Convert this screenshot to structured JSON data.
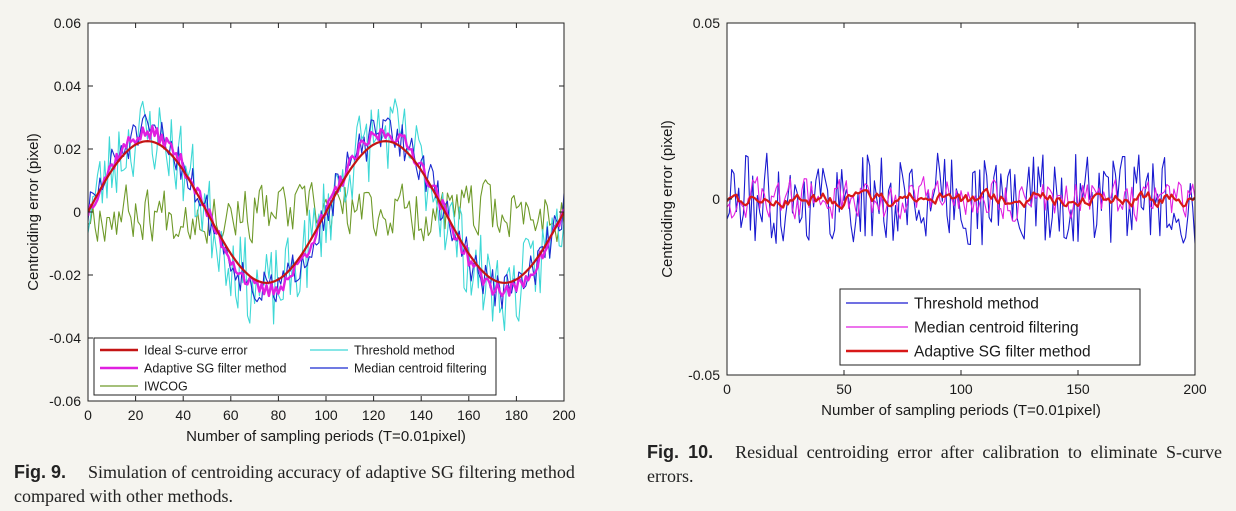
{
  "chart_data": [
    {
      "type": "line",
      "title": "",
      "xlabel": "Number of sampling periods (T=0.01pixel)",
      "ylabel": "Centroiding error (pixel)",
      "xlim": [
        0,
        200
      ],
      "ylim": [
        -0.06,
        0.06
      ],
      "xticks": [
        "0",
        "20",
        "40",
        "60",
        "80",
        "100",
        "120",
        "140",
        "160",
        "180",
        "200"
      ],
      "yticks": [
        "-0.06",
        "-0.04",
        "-0.02",
        "0",
        "0.02",
        "0.04",
        "0.06"
      ],
      "legend_position": "bottom-left",
      "series": [
        {
          "name": "Ideal S-curve error",
          "color": "#c41414",
          "kind": "sine",
          "amplitude": 0.0225,
          "noise": 0
        },
        {
          "name": "Threshold method",
          "color": "#3ed8d6",
          "kind": "sine",
          "amplitude": 0.025,
          "noise": 0.013
        },
        {
          "name": "Adaptive SG filter method",
          "color": "#e020e0",
          "kind": "sine",
          "amplitude": 0.025,
          "noise": 0.0025
        },
        {
          "name": "Median centroid filtering",
          "color": "#1a2ad0",
          "kind": "sine",
          "amplitude": 0.025,
          "noise": 0.006
        },
        {
          "name": "IWCOG",
          "color": "#6f9a2a",
          "kind": "noise",
          "amplitude": 0.0,
          "noise": 0.009
        }
      ],
      "caption_label": "Fig. 9.",
      "caption_text": "Simulation of centroiding accuracy of adaptive SG filtering method compared with other methods."
    },
    {
      "type": "line",
      "title": "",
      "xlabel": "Number of sampling periods (T=0.01pixel)",
      "ylabel": "Centroiding error (pixel)",
      "xlim": [
        0,
        200
      ],
      "ylim": [
        -0.05,
        0.05
      ],
      "xticks": [
        "0",
        "50",
        "100",
        "150",
        "200"
      ],
      "yticks": [
        "-0.05",
        "0",
        "0.05"
      ],
      "legend_position": "bottom-right",
      "series": [
        {
          "name": "Threshold method",
          "color": "#1a1ad0",
          "kind": "noise",
          "amplitude": 0.0,
          "noise": 0.013
        },
        {
          "name": "Median centroid filtering",
          "color": "#e020e0",
          "kind": "noise",
          "amplitude": 0.0,
          "noise": 0.006
        },
        {
          "name": "Adaptive SG filter method",
          "color": "#d81818",
          "kind": "noise",
          "amplitude": 0.0,
          "noise": 0.0025
        }
      ],
      "caption_label": "Fig. 10.",
      "caption_text": "Residual centroiding error after calibration to eliminate S-curve errors."
    }
  ]
}
